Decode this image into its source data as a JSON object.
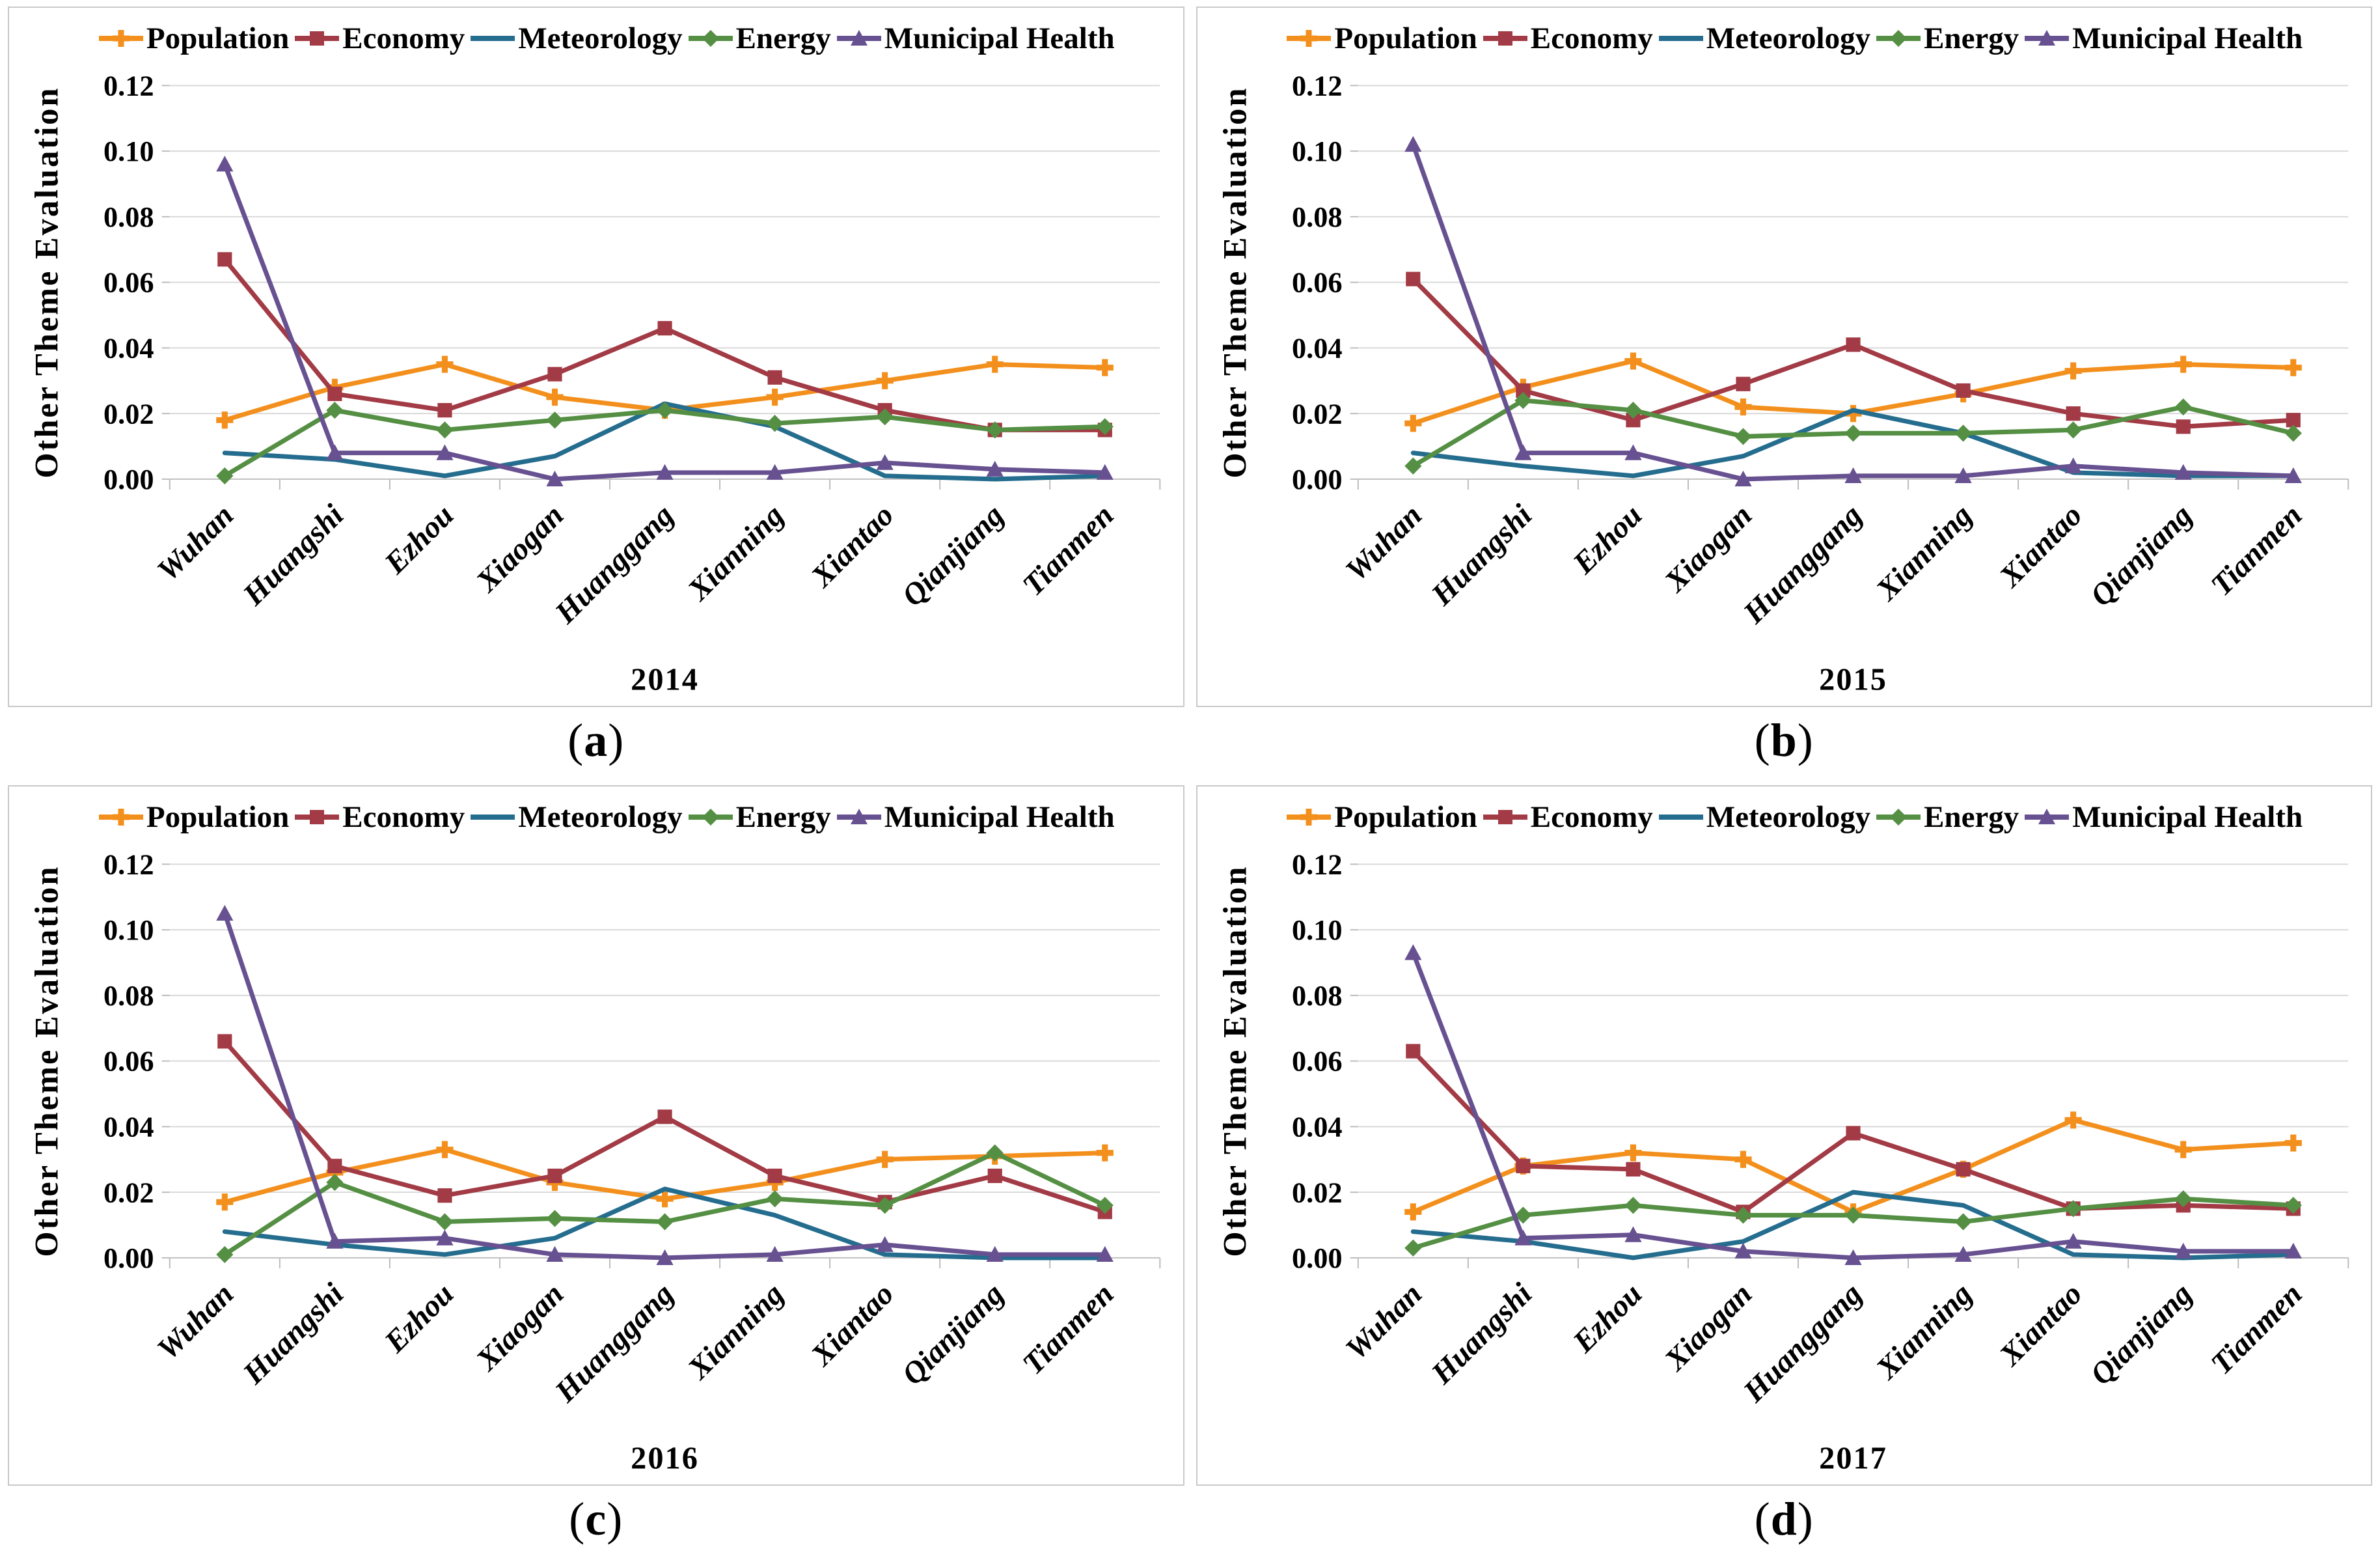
{
  "figure": {
    "y_axis_title": "Other Theme Evaluation",
    "y_ticks": [
      "0.00",
      "0.02",
      "0.04",
      "0.06",
      "0.08",
      "0.10",
      "0.12"
    ],
    "legend_labels": [
      "Population",
      "Economy",
      "Meteorology",
      "Energy",
      "Municipal Health"
    ],
    "grid_color": "#d9d9d9",
    "axis_color": "#c0c0c0",
    "tick_color": "#bdbdbd"
  },
  "chart_data": [
    {
      "id": "a",
      "caption": "(a)",
      "caption_letter": "a",
      "type": "line",
      "title": "2014",
      "xlabel": "2014",
      "ylabel": "Other Theme Evaluation",
      "ylim": [
        0,
        0.12
      ],
      "ytick_step": 0.02,
      "grid": "horizontal",
      "legend_position": "top",
      "categories": [
        "Wuhan",
        "Huangshi",
        "Ezhou",
        "Xiaogan",
        "Huanggang",
        "Xianning",
        "Xiantao",
        "Qianjiang",
        "Tianmen"
      ],
      "series": [
        {
          "name": "Population",
          "color": "#f3901d",
          "marker": "plus",
          "values": [
            0.018,
            0.028,
            0.035,
            0.025,
            0.021,
            0.025,
            0.03,
            0.035,
            0.034
          ]
        },
        {
          "name": "Economy",
          "color": "#a23b45",
          "marker": "square",
          "values": [
            0.067,
            0.026,
            0.021,
            0.032,
            0.046,
            0.031,
            0.021,
            0.015,
            0.015
          ]
        },
        {
          "name": "Meteorology",
          "color": "#256d8e",
          "marker": "none",
          "values": [
            0.008,
            0.006,
            0.001,
            0.007,
            0.023,
            0.016,
            0.001,
            0.0,
            0.001
          ]
        },
        {
          "name": "Energy",
          "color": "#548f43",
          "marker": "diamond",
          "values": [
            0.001,
            0.021,
            0.015,
            0.018,
            0.021,
            0.017,
            0.019,
            0.015,
            0.016
          ]
        },
        {
          "name": "Municipal Health",
          "color": "#675191",
          "marker": "triangle",
          "values": [
            0.096,
            0.008,
            0.008,
            0.0,
            0.002,
            0.002,
            0.005,
            0.003,
            0.002
          ]
        }
      ]
    },
    {
      "id": "b",
      "caption": "(b)",
      "caption_letter": "b",
      "type": "line",
      "title": "2015",
      "xlabel": "2015",
      "ylabel": "Other Theme Evaluation",
      "ylim": [
        0,
        0.12
      ],
      "ytick_step": 0.02,
      "grid": "horizontal",
      "legend_position": "top",
      "categories": [
        "Wuhan",
        "Huangshi",
        "Ezhou",
        "Xiaogan",
        "Huanggang",
        "Xianning",
        "Xiantao",
        "Qianjiang",
        "Tianmen"
      ],
      "series": [
        {
          "name": "Population",
          "color": "#f3901d",
          "marker": "plus",
          "values": [
            0.017,
            0.028,
            0.036,
            0.022,
            0.02,
            0.026,
            0.033,
            0.035,
            0.034
          ]
        },
        {
          "name": "Economy",
          "color": "#a23b45",
          "marker": "square",
          "values": [
            0.061,
            0.027,
            0.018,
            0.029,
            0.041,
            0.027,
            0.02,
            0.016,
            0.018
          ]
        },
        {
          "name": "Meteorology",
          "color": "#256d8e",
          "marker": "none",
          "values": [
            0.008,
            0.004,
            0.001,
            0.007,
            0.021,
            0.014,
            0.002,
            0.001,
            0.001
          ]
        },
        {
          "name": "Energy",
          "color": "#548f43",
          "marker": "diamond",
          "values": [
            0.004,
            0.024,
            0.021,
            0.013,
            0.014,
            0.014,
            0.015,
            0.022,
            0.014
          ]
        },
        {
          "name": "Municipal Health",
          "color": "#675191",
          "marker": "triangle",
          "values": [
            0.102,
            0.008,
            0.008,
            0.0,
            0.001,
            0.001,
            0.004,
            0.002,
            0.001
          ]
        }
      ]
    },
    {
      "id": "c",
      "caption": "(c)",
      "caption_letter": "c",
      "type": "line",
      "title": "2016",
      "xlabel": "2016",
      "ylabel": "Other Theme Evaluation",
      "ylim": [
        0,
        0.12
      ],
      "ytick_step": 0.02,
      "grid": "horizontal",
      "legend_position": "top",
      "categories": [
        "Wuhan",
        "Huangshi",
        "Ezhou",
        "Xiaogan",
        "Huanggang",
        "Xianning",
        "Xiantao",
        "Qianjiang",
        "Tianmen"
      ],
      "series": [
        {
          "name": "Population",
          "color": "#f3901d",
          "marker": "plus",
          "values": [
            0.017,
            0.026,
            0.033,
            0.023,
            0.018,
            0.023,
            0.03,
            0.031,
            0.032
          ]
        },
        {
          "name": "Economy",
          "color": "#a23b45",
          "marker": "square",
          "values": [
            0.066,
            0.028,
            0.019,
            0.025,
            0.043,
            0.025,
            0.017,
            0.025,
            0.014
          ]
        },
        {
          "name": "Meteorology",
          "color": "#256d8e",
          "marker": "none",
          "values": [
            0.008,
            0.004,
            0.001,
            0.006,
            0.021,
            0.013,
            0.001,
            0.0,
            0.0
          ]
        },
        {
          "name": "Energy",
          "color": "#548f43",
          "marker": "diamond",
          "values": [
            0.001,
            0.023,
            0.011,
            0.012,
            0.011,
            0.018,
            0.016,
            0.032,
            0.016
          ]
        },
        {
          "name": "Municipal Health",
          "color": "#675191",
          "marker": "triangle",
          "values": [
            0.105,
            0.005,
            0.006,
            0.001,
            0.0,
            0.001,
            0.004,
            0.001,
            0.001
          ]
        }
      ]
    },
    {
      "id": "d",
      "caption": "(d)",
      "caption_letter": "d",
      "type": "line",
      "title": "2017",
      "xlabel": "2017",
      "ylabel": "Other Theme Evaluation",
      "ylim": [
        0,
        0.12
      ],
      "ytick_step": 0.02,
      "grid": "horizontal",
      "legend_position": "top",
      "categories": [
        "Wuhan",
        "Huangshi",
        "Ezhou",
        "Xiaogan",
        "Huanggang",
        "Xianning",
        "Xiantao",
        "Qianjiang",
        "Tianmen"
      ],
      "series": [
        {
          "name": "Population",
          "color": "#f3901d",
          "marker": "plus",
          "values": [
            0.014,
            0.028,
            0.032,
            0.03,
            0.014,
            0.027,
            0.042,
            0.033,
            0.035
          ]
        },
        {
          "name": "Economy",
          "color": "#a23b45",
          "marker": "square",
          "values": [
            0.063,
            0.028,
            0.027,
            0.014,
            0.038,
            0.027,
            0.015,
            0.016,
            0.015
          ]
        },
        {
          "name": "Meteorology",
          "color": "#256d8e",
          "marker": "none",
          "values": [
            0.008,
            0.005,
            0.0,
            0.005,
            0.02,
            0.016,
            0.001,
            0.0,
            0.001
          ]
        },
        {
          "name": "Energy",
          "color": "#548f43",
          "marker": "diamond",
          "values": [
            0.003,
            0.013,
            0.016,
            0.013,
            0.013,
            0.011,
            0.015,
            0.018,
            0.016
          ]
        },
        {
          "name": "Municipal Health",
          "color": "#675191",
          "marker": "triangle",
          "values": [
            0.093,
            0.006,
            0.007,
            0.002,
            0.0,
            0.001,
            0.005,
            0.002,
            0.002
          ]
        }
      ]
    }
  ]
}
